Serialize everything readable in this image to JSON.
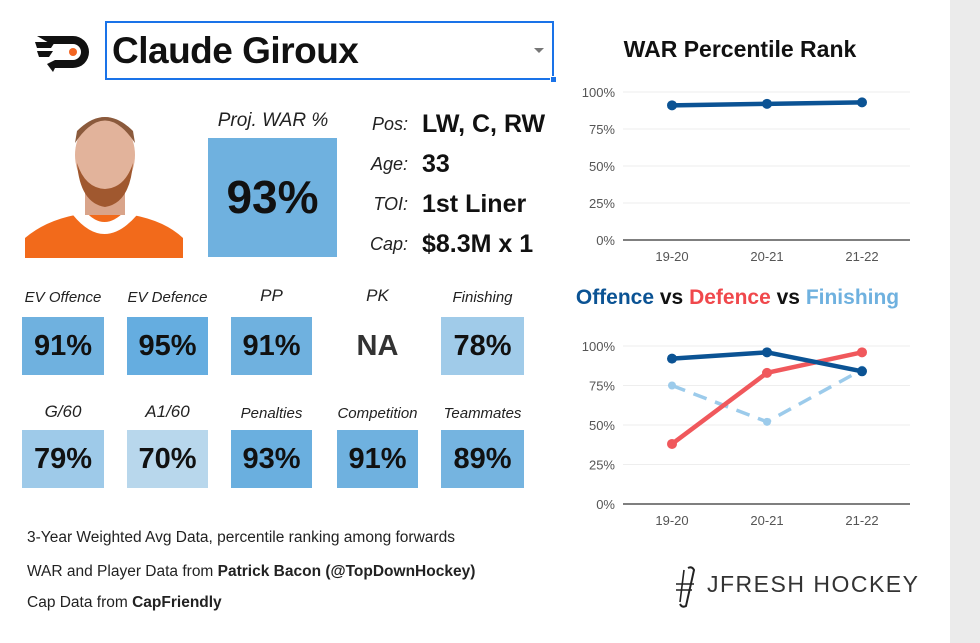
{
  "player": {
    "name": "Claude Giroux",
    "team_logo": "flyers-logo-icon"
  },
  "proj_war": {
    "label": "Proj. WAR %",
    "value": "93%"
  },
  "info": [
    {
      "key": "Pos:",
      "value": "LW, C, RW"
    },
    {
      "key": "Age:",
      "value": "33"
    },
    {
      "key": "TOI:",
      "value": "1st Liner"
    },
    {
      "key": "Cap:",
      "value": "$8.3M x 1"
    }
  ],
  "tiles": [
    {
      "label": "EV Offence",
      "value": "91%",
      "color": "#6fb1df"
    },
    {
      "label": "EV Defence",
      "value": "95%",
      "color": "#65ade0"
    },
    {
      "label": "PP",
      "value": "91%",
      "color": "#6fb1df"
    },
    {
      "label": "PK",
      "value": "NA",
      "color": "#ffffff"
    },
    {
      "label": "Finishing",
      "value": "78%",
      "color": "#a0cbe9"
    },
    {
      "label": "G/60",
      "value": "79%",
      "color": "#9ecae9"
    },
    {
      "label": "A1/60",
      "value": "70%",
      "color": "#b8d7ec"
    },
    {
      "label": "Penalties",
      "value": "93%",
      "color": "#6aafdf"
    },
    {
      "label": "Competition",
      "value": "91%",
      "color": "#6fb1df"
    },
    {
      "label": "Teammates",
      "value": "89%",
      "color": "#75b4e0"
    }
  ],
  "footer": {
    "line1": "3-Year Weighted Avg Data, percentile ranking among forwards",
    "line2_prefix": "WAR and Player Data from ",
    "line2_bold": "Patrick Bacon (@TopDownHockey)",
    "line3_prefix": "Cap Data from ",
    "line3_bold": "CapFriendly"
  },
  "brand": "JFRESH HOCKEY",
  "chart_data": [
    {
      "type": "line",
      "title": "WAR Percentile Rank",
      "categories": [
        "19-20",
        "20-21",
        "21-22"
      ],
      "yticks": [
        "0%",
        "25%",
        "50%",
        "75%",
        "100%"
      ],
      "ylim": [
        0,
        100
      ],
      "grid": true,
      "series": [
        {
          "values": [
            91,
            92,
            93
          ],
          "color": "#0b5394",
          "dashed": false
        }
      ]
    },
    {
      "type": "line",
      "title_parts": [
        {
          "text": "Offence",
          "color": "#0b5394"
        },
        {
          "text": " vs ",
          "color": "#111111"
        },
        {
          "text": "Defence",
          "color": "#f0484c"
        },
        {
          "text": " vs ",
          "color": "#111111"
        },
        {
          "text": "Finishing",
          "color": "#6fb1df"
        }
      ],
      "categories": [
        "19-20",
        "20-21",
        "21-22"
      ],
      "yticks": [
        "0%",
        "25%",
        "50%",
        "75%",
        "100%"
      ],
      "ylim": [
        0,
        100
      ],
      "grid": true,
      "series": [
        {
          "name": "Offence",
          "values": [
            92,
            96,
            84
          ],
          "color": "#0b5394",
          "dashed": false
        },
        {
          "name": "Defence",
          "values": [
            38,
            83,
            96
          ],
          "color": "#f0585c",
          "dashed": false
        },
        {
          "name": "Finishing",
          "values": [
            75,
            52,
            85
          ],
          "color": "#9ccbeb",
          "dashed": true
        }
      ]
    }
  ]
}
